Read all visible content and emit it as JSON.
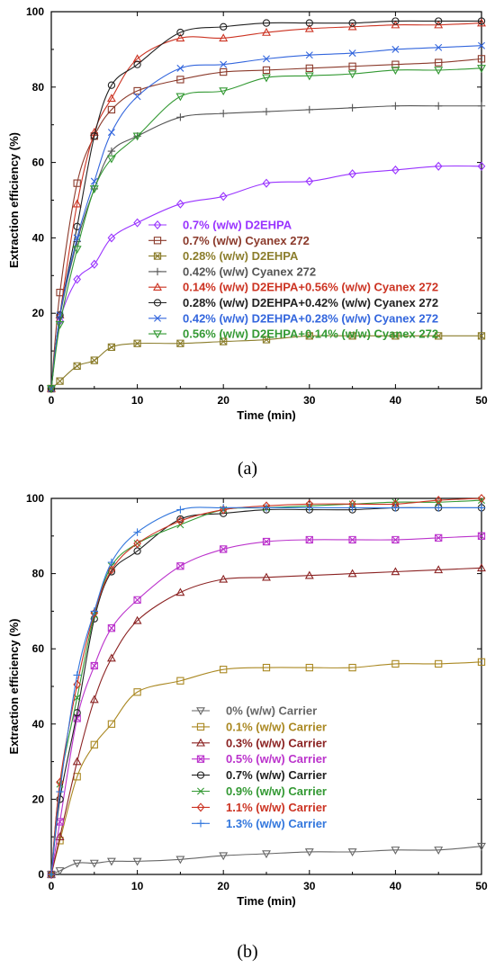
{
  "chart_data": [
    {
      "type": "line",
      "panel_label": "(a)",
      "xlabel": "Time (min)",
      "ylabel": "Extraction efficiency (%)",
      "xlim": [
        0,
        50
      ],
      "ylim": [
        0,
        100
      ],
      "xticks": [
        0,
        10,
        20,
        30,
        40,
        50
      ],
      "yticks": [
        0,
        20,
        40,
        60,
        80,
        100
      ],
      "grid": false,
      "legend_position": "center-right",
      "series": [
        {
          "name": "0.7% (w/w) D2EHPA",
          "color": "#9933ff",
          "marker": "diamond",
          "x": [
            0,
            1,
            3,
            5,
            7,
            10,
            15,
            20,
            25,
            30,
            35,
            40,
            45,
            50
          ],
          "y": [
            0,
            18,
            29,
            33,
            40,
            44,
            49,
            51,
            54.5,
            55,
            57,
            58,
            59,
            59
          ]
        },
        {
          "name": "0.7% (w/w) Cyanex 272",
          "color": "#8b3a2b",
          "marker": "square",
          "x": [
            0,
            1,
            3,
            5,
            7,
            10,
            15,
            20,
            25,
            30,
            35,
            40,
            45,
            50
          ],
          "y": [
            0,
            25.5,
            54.5,
            67,
            74,
            79,
            82,
            84,
            84.5,
            85,
            85.5,
            86,
            86.5,
            87.5
          ]
        },
        {
          "name": "0.28% (w/w) D2EHPA",
          "color": "#8b7d2b",
          "marker": "box-x",
          "x": [
            0,
            1,
            3,
            5,
            7,
            10,
            15,
            20,
            25,
            30,
            35,
            40,
            45,
            50
          ],
          "y": [
            0,
            2,
            6,
            7.5,
            11,
            12,
            12,
            12.5,
            13,
            14,
            14,
            14,
            14,
            14
          ]
        },
        {
          "name": "0.42% (w/w) Cyanex 272",
          "color": "#555555",
          "marker": "plus",
          "x": [
            0,
            1,
            3,
            5,
            7,
            10,
            15,
            20,
            25,
            30,
            35,
            40,
            45,
            50
          ],
          "y": [
            0,
            19,
            39,
            53,
            63,
            67,
            72,
            73,
            73.5,
            74,
            74.5,
            75,
            75,
            75
          ]
        },
        {
          "name": "0.14% (w/w) D2EHPA+0.56% (w/w) Cyanex 272",
          "color": "#cc3322",
          "marker": "triangle-up",
          "x": [
            0,
            1,
            3,
            5,
            7,
            10,
            15,
            20,
            25,
            30,
            35,
            40,
            45,
            50
          ],
          "y": [
            0,
            19.5,
            49,
            68,
            77,
            87.5,
            93,
            93,
            94.5,
            95.5,
            96,
            96.5,
            96.5,
            97
          ]
        },
        {
          "name": "0.28% (w/w) D2EHPA+0.42% (w/w) Cyanex 272",
          "color": "#222222",
          "marker": "circle",
          "x": [
            0,
            1,
            3,
            5,
            7,
            10,
            15,
            20,
            25,
            30,
            35,
            40,
            45,
            50
          ],
          "y": [
            0,
            19.5,
            43,
            67,
            80.5,
            86,
            94.5,
            96,
            97,
            97,
            97,
            97.5,
            97.5,
            97.5
          ]
        },
        {
          "name": "0.42% (w/w) D2EHPA+0.28% (w/w) Cyanex 272",
          "color": "#3366dd",
          "marker": "x",
          "x": [
            0,
            1,
            3,
            5,
            7,
            10,
            15,
            20,
            25,
            30,
            35,
            40,
            45,
            50
          ],
          "y": [
            0,
            19.5,
            40,
            55,
            68,
            77.5,
            85,
            86,
            87.5,
            88.5,
            89,
            90,
            90.5,
            91
          ]
        },
        {
          "name": "0.56% (w/w) D2EHPA+0.14% (w/w) Cyanex 272",
          "color": "#339933",
          "marker": "triangle-down",
          "x": [
            0,
            1,
            3,
            5,
            7,
            10,
            15,
            20,
            25,
            30,
            35,
            40,
            45,
            50
          ],
          "y": [
            0,
            17,
            37,
            53,
            61,
            67,
            77.5,
            79,
            82.5,
            83,
            83.5,
            84.5,
            84.5,
            85
          ]
        }
      ]
    },
    {
      "type": "line",
      "panel_label": "(b)",
      "xlabel": "Time (min)",
      "ylabel": "Extraction efficiency (%)",
      "xlim": [
        0,
        50
      ],
      "ylim": [
        0,
        100
      ],
      "xticks": [
        0,
        10,
        20,
        30,
        40,
        50
      ],
      "yticks": [
        0,
        20,
        40,
        60,
        80,
        100
      ],
      "grid": false,
      "legend_position": "bottom-right",
      "series": [
        {
          "name": "0% (w/w) Carrier",
          "color": "#666666",
          "marker": "triangle-down",
          "x": [
            0,
            1,
            3,
            5,
            7,
            10,
            15,
            20,
            25,
            30,
            35,
            40,
            45,
            50
          ],
          "y": [
            0,
            1,
            3,
            3,
            3.5,
            3.5,
            4,
            5,
            5.5,
            6,
            6,
            6.5,
            6.5,
            7.5
          ]
        },
        {
          "name": "0.1% (w/w) Carrier",
          "color": "#aa8822",
          "marker": "square",
          "x": [
            0,
            1,
            3,
            5,
            7,
            10,
            15,
            20,
            25,
            30,
            35,
            40,
            45,
            50
          ],
          "y": [
            0,
            9,
            26,
            34.5,
            40,
            48.5,
            51.5,
            54.5,
            55,
            55,
            55,
            56,
            56,
            56.5
          ]
        },
        {
          "name": "0.3% (w/w) Carrier",
          "color": "#8b2222",
          "marker": "triangle-up",
          "x": [
            0,
            1,
            3,
            5,
            7,
            10,
            15,
            20,
            25,
            30,
            35,
            40,
            45,
            50
          ],
          "y": [
            0,
            10,
            30,
            46.5,
            57.5,
            67.5,
            75,
            78.5,
            79,
            79.5,
            80,
            80.5,
            81,
            81.5
          ]
        },
        {
          "name": "0.5% (w/w) Carrier",
          "color": "#bb33cc",
          "marker": "box-x",
          "x": [
            0,
            1,
            3,
            5,
            7,
            10,
            15,
            20,
            25,
            30,
            35,
            40,
            45,
            50
          ],
          "y": [
            0,
            14,
            41.5,
            55.5,
            65.5,
            73,
            82,
            86.5,
            88.5,
            89,
            89,
            89,
            89.5,
            90
          ]
        },
        {
          "name": "0.7% (w/w) Carrier",
          "color": "#222222",
          "marker": "circle",
          "x": [
            0,
            1,
            3,
            5,
            7,
            10,
            15,
            20,
            25,
            30,
            35,
            40,
            45,
            50
          ],
          "y": [
            0,
            20,
            43,
            68,
            80.5,
            86,
            94.5,
            96,
            97,
            97,
            97,
            97.5,
            97.5,
            97.5
          ]
        },
        {
          "name": "0.9% (w/w) Carrier",
          "color": "#339933",
          "marker": "x",
          "x": [
            0,
            1,
            3,
            5,
            7,
            10,
            15,
            20,
            25,
            30,
            35,
            40,
            45,
            50
          ],
          "y": [
            0,
            24,
            47,
            69,
            82,
            88,
            93,
            97,
            97.5,
            98,
            98.5,
            99,
            99,
            99.5
          ]
        },
        {
          "name": "1.1% (w/w) Carrier",
          "color": "#cc3322",
          "marker": "diamond",
          "x": [
            0,
            1,
            3,
            5,
            7,
            10,
            15,
            20,
            25,
            30,
            35,
            40,
            45,
            50
          ],
          "y": [
            0,
            24.5,
            50.5,
            69.5,
            81,
            88,
            94,
            97,
            98,
            98.5,
            98.5,
            98.5,
            99.5,
            100
          ]
        },
        {
          "name": "1.3% (w/w) Carrier",
          "color": "#3377dd",
          "marker": "plus",
          "x": [
            0,
            1,
            3,
            5,
            7,
            10,
            15,
            20,
            25,
            30,
            35,
            40,
            45,
            50
          ],
          "y": [
            0,
            22,
            53,
            70,
            83,
            91,
            97,
            97.5,
            97.5,
            97.5,
            97.5,
            97.5,
            97.5,
            97.5
          ]
        }
      ]
    }
  ]
}
